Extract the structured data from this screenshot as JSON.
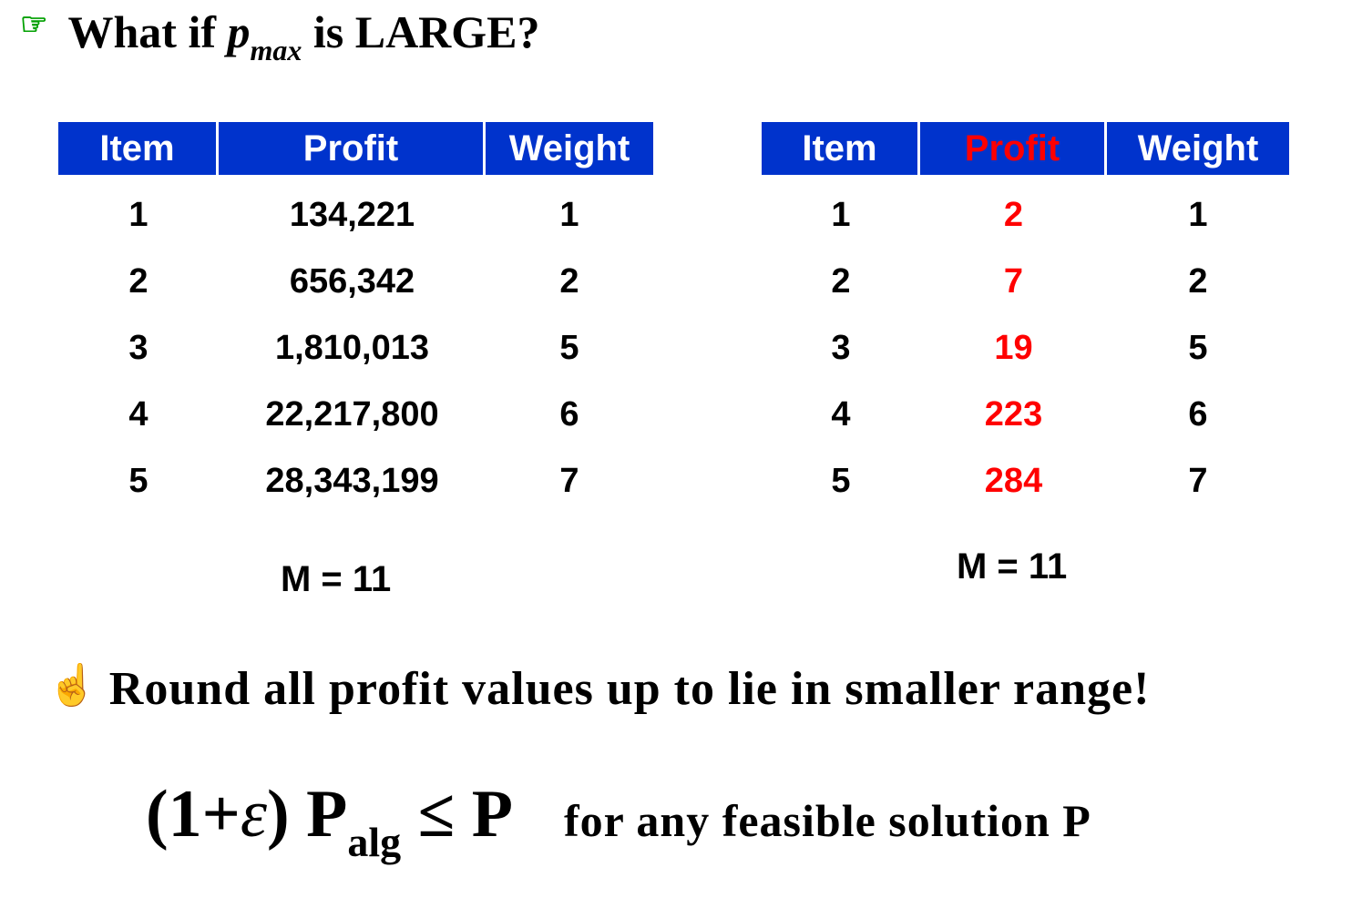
{
  "title": {
    "bullet": "☞",
    "prefix": "What if ",
    "var": "p",
    "sub": "max",
    "suffix": " is LARGE?"
  },
  "left_table": {
    "headers": [
      "Item",
      "Profit",
      "Weight"
    ],
    "rows": [
      [
        "1",
        "134,221",
        "1"
      ],
      [
        "2",
        "656,342",
        "2"
      ],
      [
        "3",
        "1,810,013",
        "5"
      ],
      [
        "4",
        "22,217,800",
        "6"
      ],
      [
        "5",
        "28,343,199",
        "7"
      ]
    ],
    "capacity": "M = 11"
  },
  "right_table": {
    "headers": [
      "Item",
      "Profit",
      "Weight"
    ],
    "rows": [
      [
        "1",
        "2",
        "1"
      ],
      [
        "2",
        "7",
        "2"
      ],
      [
        "3",
        "19",
        "5"
      ],
      [
        "4",
        "223",
        "6"
      ],
      [
        "5",
        "284",
        "7"
      ]
    ],
    "capacity": "M = 11"
  },
  "round_line": {
    "icon": "☝",
    "text": "Round all profit values up to lie in smaller range!"
  },
  "formula": {
    "open": "(1+",
    "eps": "ε",
    "close": ") P",
    "sub": "alg",
    "rel": " ≤ P",
    "tail": "for any feasible solution P"
  },
  "colors": {
    "header_bg": "#0033cc",
    "header_text": "#ffffff",
    "highlight": "#ff0000",
    "bullet_green": "#00a000",
    "hand_blue": "#0033cc"
  }
}
